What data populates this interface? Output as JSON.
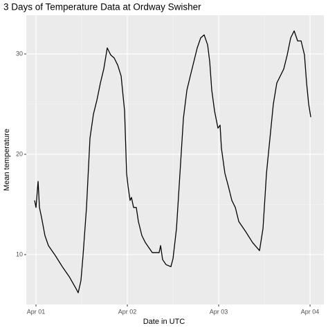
{
  "chart_data": {
    "type": "line",
    "title": "3 Days of Temperature Data at Ordway Swisher",
    "x_label": "Date in UTC",
    "y_label": "Mean temperature",
    "x": [
      -0.015,
      0,
      0.023,
      0.038,
      0.061,
      0.098,
      0.136,
      0.212,
      0.288,
      0.364,
      0.439,
      0.462,
      0.492,
      0.515,
      0.553,
      0.591,
      0.629,
      0.667,
      0.705,
      0.742,
      0.78,
      0.818,
      0.856,
      0.894,
      0.932,
      0.97,
      0.992,
      1.008,
      1.03,
      1.045,
      1.068,
      1.098,
      1.121,
      1.159,
      1.197,
      1.273,
      1.348,
      1.364,
      1.386,
      1.424,
      1.477,
      1.5,
      1.538,
      1.576,
      1.614,
      1.652,
      1.689,
      1.727,
      1.765,
      1.803,
      1.841,
      1.879,
      1.902,
      1.924,
      1.955,
      1.992,
      2.015,
      2.03,
      2.068,
      2.106,
      2.144,
      2.182,
      2.22,
      2.295,
      2.371,
      2.447,
      2.485,
      2.523,
      2.561,
      2.598,
      2.636,
      2.674,
      2.712,
      2.75,
      2.788,
      2.826,
      2.864,
      2.902,
      2.939,
      2.962,
      2.985,
      3.008
    ],
    "series": [
      {
        "color": "#000000",
        "values": [
          15.4,
          14.7,
          17.3,
          14.7,
          13.7,
          11.9,
          10.9,
          9.9,
          8.8,
          7.8,
          6.6,
          6.2,
          7.4,
          9.9,
          14.7,
          21.6,
          24.0,
          25.4,
          27.1,
          28.5,
          30.6,
          29.9,
          29.6,
          28.9,
          27.8,
          24.3,
          18.1,
          16.8,
          15.4,
          15.7,
          14.7,
          14.7,
          13.3,
          11.9,
          11.2,
          10.2,
          10.2,
          10.9,
          9.5,
          9.0,
          8.8,
          9.6,
          12.6,
          18.1,
          23.6,
          26.4,
          27.8,
          29.2,
          30.6,
          31.6,
          31.9,
          30.9,
          29.2,
          26.4,
          24.3,
          22.6,
          22.9,
          20.6,
          18.1,
          16.8,
          15.4,
          14.7,
          13.3,
          12.3,
          11.2,
          10.4,
          12.6,
          18.1,
          21.6,
          25.0,
          27.1,
          27.8,
          28.5,
          29.9,
          31.6,
          32.3,
          31.3,
          31.3,
          29.9,
          27.1,
          25.0,
          23.7
        ]
      }
    ],
    "xlim": [
      -0.106,
      3.151
    ],
    "xticks": [
      {
        "value": 0,
        "label": "Apr 01"
      },
      {
        "value": 1,
        "label": "Apr 02"
      },
      {
        "value": 2,
        "label": "Apr 03"
      },
      {
        "value": 3,
        "label": "Apr 04"
      }
    ],
    "xticks_minor": [
      0.5,
      1.5,
      2.5
    ],
    "ylim": [
      5.03,
      33.86
    ],
    "yticks": [
      10,
      20,
      30
    ],
    "yticks_minor": [
      15,
      25
    ],
    "grid": true
  }
}
